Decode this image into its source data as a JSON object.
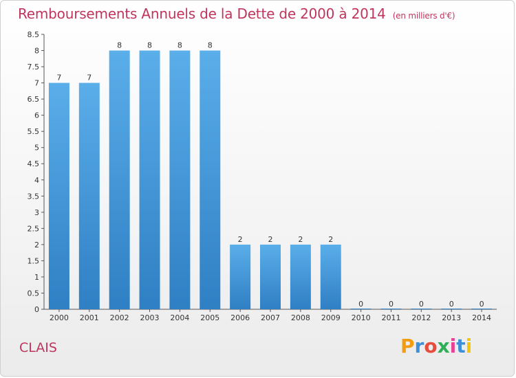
{
  "header": {
    "title": "Remboursements Annuels de la Dette de 2000 à 2014",
    "subtitle": "(en milliers d'€)"
  },
  "footer": {
    "place": "CLAIS",
    "logo_letters": [
      "P",
      "r",
      "o",
      "x",
      "i",
      "t",
      "i"
    ],
    "logo_colors": [
      "#f39c12",
      "#3d8fd8",
      "#e74c3c",
      "#2eae56",
      "#e84393",
      "#3d8fd8",
      "#f1c40f"
    ]
  },
  "chart_data": {
    "type": "bar",
    "title": "Remboursements Annuels de la Dette de 2000 à 2014",
    "subtitle": "(en milliers d'€)",
    "xlabel": "",
    "ylabel": "",
    "categories": [
      "2000",
      "2001",
      "2002",
      "2003",
      "2004",
      "2005",
      "2006",
      "2007",
      "2008",
      "2009",
      "2010",
      "2011",
      "2012",
      "2013",
      "2014"
    ],
    "values": [
      7,
      7,
      8,
      8,
      8,
      8,
      2,
      2,
      2,
      2,
      0,
      0,
      0,
      0,
      0
    ],
    "data_labels": [
      "7",
      "7",
      "8",
      "8",
      "8",
      "8",
      "2",
      "2",
      "2",
      "2",
      "0",
      "0",
      "0",
      "0",
      "0"
    ],
    "ylim": [
      0,
      8.5
    ],
    "y_ticks": [
      "0",
      "0.5",
      "1",
      "1.5",
      "2",
      "2.5",
      "3",
      "3.5",
      "4",
      "4.5",
      "5",
      "5.5",
      "6",
      "6.5",
      "7",
      "7.5",
      "8",
      "8.5"
    ],
    "grid": false,
    "bar_color_top": "#5aaee9",
    "bar_color_bottom": "#2f7fc4"
  }
}
